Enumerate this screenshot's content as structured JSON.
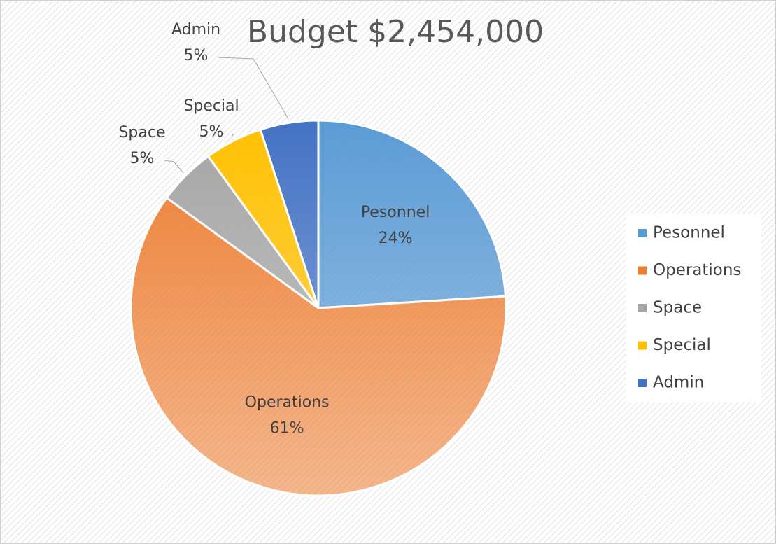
{
  "chart_data": {
    "type": "pie",
    "title": "Budget $2,454,000",
    "categories": [
      "Pesonnel",
      "Operations",
      "Space",
      "Special",
      "Admin"
    ],
    "values": [
      24,
      61,
      5,
      5,
      5
    ],
    "value_labels": [
      "24%",
      "61%",
      "5%",
      "5%",
      "5%"
    ],
    "colors": [
      "#5b9bd5",
      "#ed7d31",
      "#a5a5a5",
      "#ffc000",
      "#4472c4"
    ],
    "legend": "right"
  }
}
